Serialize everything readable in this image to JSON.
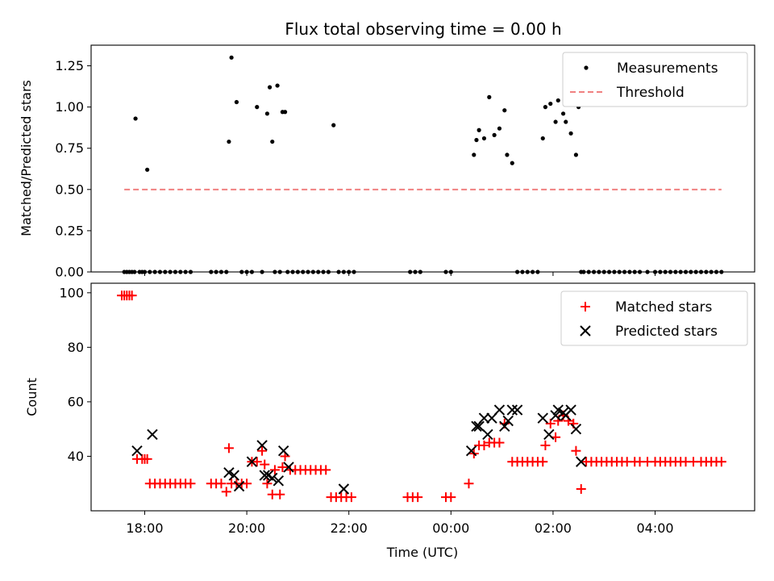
{
  "title": "Flux total observing time = 0.00 h",
  "xlabel": "Time (UTC)",
  "x_tick_labels": [
    "18:00",
    "20:00",
    "22:00",
    "00:00",
    "02:00",
    "04:00"
  ],
  "colors": {
    "measurements": "#000000",
    "threshold": "#f08080",
    "matched": "#ff0000",
    "predicted": "#000000"
  },
  "chart_data": [
    {
      "type": "scatter",
      "ylabel": "Matched/Predicted stars",
      "xlim": [
        16.95,
        29.95
      ],
      "ylim": [
        0,
        1.375
      ],
      "y_tick_labels": [
        "0.00",
        "0.25",
        "0.50",
        "0.75",
        "1.00",
        "1.25"
      ],
      "y_ticks": [
        0,
        0.25,
        0.5,
        0.75,
        1.0,
        1.25
      ],
      "legend": {
        "position": "top-right",
        "measurements": "Measurements",
        "threshold": "Threshold"
      },
      "threshold": {
        "x": [
          17.6,
          29.3
        ],
        "y": 0.5
      },
      "measurements": {
        "x": [
          17.6,
          17.65,
          17.7,
          17.75,
          17.8,
          17.82,
          17.9,
          17.95,
          18.0,
          18.05,
          18.1,
          18.2,
          18.3,
          18.4,
          18.5,
          18.6,
          18.7,
          18.8,
          18.9,
          19.3,
          19.4,
          19.5,
          19.6,
          19.65,
          19.7,
          19.8,
          19.9,
          20.0,
          20.1,
          20.2,
          20.3,
          20.4,
          20.45,
          20.5,
          20.55,
          20.6,
          20.65,
          20.7,
          20.75,
          20.8,
          20.9,
          21.0,
          21.1,
          21.2,
          21.3,
          21.4,
          21.5,
          21.6,
          21.7,
          21.8,
          21.9,
          22.0,
          22.1,
          23.2,
          23.3,
          23.4,
          23.9,
          24.0,
          24.45,
          24.5,
          24.55,
          24.65,
          24.75,
          24.85,
          24.95,
          25.05,
          25.1,
          25.2,
          25.3,
          25.4,
          25.5,
          25.6,
          25.7,
          25.8,
          25.85,
          25.95,
          26.05,
          26.1,
          26.2,
          26.25,
          26.35,
          26.45,
          26.5,
          26.55,
          26.6,
          26.7,
          26.8,
          26.9,
          27.0,
          27.1,
          27.2,
          27.3,
          27.4,
          27.5,
          27.6,
          27.7,
          27.85,
          28.0,
          28.1,
          28.2,
          28.3,
          28.4,
          28.5,
          28.6,
          28.7,
          28.8,
          28.9,
          29.0,
          29.1,
          29.2,
          29.3
        ],
        "y": [
          0,
          0,
          0,
          0,
          0,
          0.93,
          0,
          0,
          0,
          0.62,
          0,
          0,
          0,
          0,
          0,
          0,
          0,
          0,
          0,
          0,
          0,
          0,
          0,
          0.79,
          1.3,
          1.03,
          0,
          0,
          0,
          1.0,
          0,
          0.96,
          1.12,
          0.79,
          0,
          1.13,
          0,
          0.97,
          0.97,
          0,
          0,
          0,
          0,
          0,
          0,
          0,
          0,
          0,
          0.89,
          0,
          0,
          0,
          0,
          0,
          0,
          0,
          0,
          0,
          0.71,
          0.8,
          0.86,
          0.81,
          1.06,
          0.83,
          0.87,
          0.98,
          0.71,
          0.66,
          0,
          0,
          0,
          0,
          0,
          0.81,
          1.0,
          1.02,
          0.91,
          1.04,
          0.96,
          0.91,
          0.84,
          0.71,
          1.0,
          0,
          0,
          0,
          0,
          0,
          0,
          0,
          0,
          0,
          0,
          0,
          0,
          0,
          0,
          0,
          0,
          0,
          0,
          0,
          0,
          0,
          0,
          0,
          0,
          0,
          0,
          0,
          0
        ]
      }
    },
    {
      "type": "scatter",
      "ylabel": "Count",
      "xlim": [
        16.95,
        29.95
      ],
      "ylim": [
        20,
        103.5
      ],
      "y_tick_labels": [
        "40",
        "60",
        "80",
        "100"
      ],
      "y_ticks": [
        40,
        60,
        80,
        100
      ],
      "legend": {
        "position": "top-right",
        "matched": "Matched stars",
        "predicted": "Predicted stars"
      },
      "matched": {
        "x": [
          17.55,
          17.6,
          17.65,
          17.7,
          17.75,
          17.85,
          17.95,
          18.0,
          18.05,
          18.1,
          18.2,
          18.3,
          18.4,
          18.5,
          18.6,
          18.7,
          18.8,
          18.9,
          19.3,
          19.4,
          19.5,
          19.6,
          19.65,
          19.7,
          19.8,
          19.9,
          20.0,
          20.1,
          20.2,
          20.3,
          20.35,
          20.4,
          20.5,
          20.55,
          20.65,
          20.7,
          20.75,
          20.85,
          20.95,
          21.05,
          21.15,
          21.25,
          21.35,
          21.45,
          21.55,
          21.65,
          21.75,
          21.85,
          21.95,
          22.05,
          23.15,
          23.25,
          23.35,
          23.9,
          24.0,
          24.35,
          24.45,
          24.55,
          24.65,
          24.75,
          24.85,
          24.95,
          25.05,
          25.2,
          25.3,
          25.4,
          25.5,
          25.6,
          25.7,
          25.8,
          25.85,
          25.95,
          26.05,
          26.1,
          26.2,
          26.3,
          26.4,
          26.45,
          26.55,
          26.65,
          26.75,
          26.85,
          26.95,
          27.05,
          27.15,
          27.25,
          27.35,
          27.45,
          27.6,
          27.7,
          27.85,
          28.0,
          28.1,
          28.2,
          28.3,
          28.4,
          28.5,
          28.6,
          28.75,
          28.9,
          29.0,
          29.1,
          29.2,
          29.3
        ],
        "y": [
          99,
          99,
          99,
          99,
          99,
          39,
          39,
          39,
          39,
          30,
          30,
          30,
          30,
          30,
          30,
          30,
          30,
          30,
          30,
          30,
          30,
          27,
          43,
          30,
          30,
          30,
          30,
          38,
          38,
          42,
          37,
          30,
          26,
          35,
          26,
          36,
          40,
          35,
          35,
          35,
          35,
          35,
          35,
          35,
          35,
          25,
          25,
          25,
          25,
          25,
          25,
          25,
          25,
          25,
          25,
          30,
          41,
          44,
          44,
          45,
          45,
          45,
          52,
          38,
          38,
          38,
          38,
          38,
          38,
          38,
          44,
          52,
          47,
          53,
          55,
          53,
          52,
          42,
          28,
          38,
          38,
          38,
          38,
          38,
          38,
          38,
          38,
          38,
          38,
          38,
          38,
          38,
          38,
          38,
          38,
          38,
          38,
          38,
          38,
          38,
          38,
          38,
          38,
          38
        ]
      },
      "predicted": {
        "x": [
          17.85,
          18.15,
          19.65,
          19.75,
          19.85,
          20.1,
          20.3,
          20.35,
          20.42,
          20.5,
          20.62,
          20.72,
          20.82,
          21.9,
          24.4,
          24.5,
          24.55,
          24.65,
          24.72,
          24.8,
          24.95,
          25.05,
          25.12,
          25.2,
          25.3,
          25.8,
          25.92,
          26.05,
          26.1,
          26.2,
          26.25,
          26.35,
          26.45,
          26.55
        ],
        "y": [
          42,
          48,
          34,
          33,
          29,
          38,
          44,
          33,
          33,
          32,
          31,
          42,
          36,
          28,
          42,
          51,
          51,
          54,
          48,
          54,
          57,
          51,
          53,
          57,
          57,
          54,
          48,
          55,
          57,
          56,
          55,
          57,
          50,
          38
        ]
      }
    }
  ]
}
